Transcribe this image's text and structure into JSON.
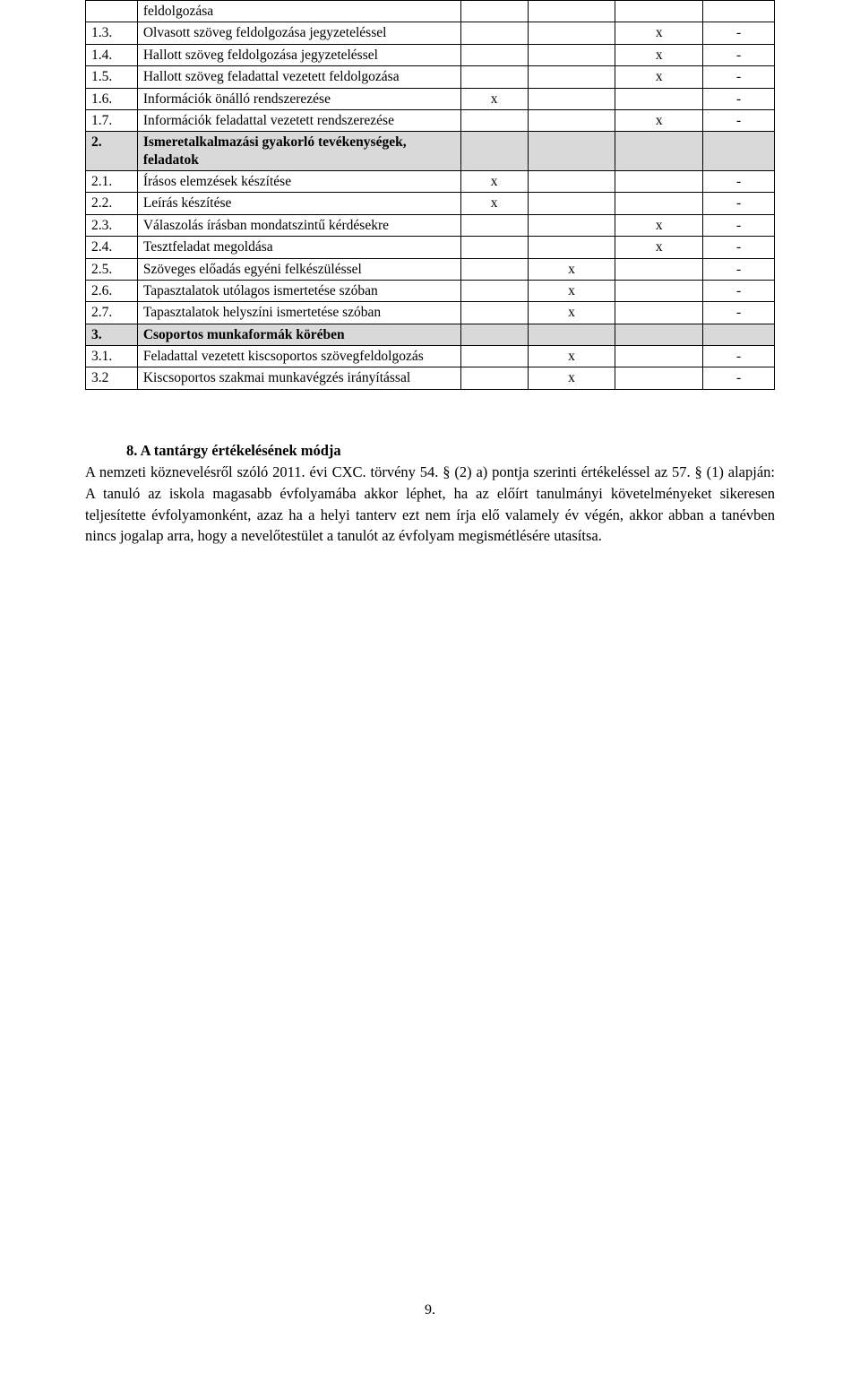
{
  "table": {
    "rows": [
      {
        "num": "",
        "desc": "feldolgozása",
        "c1": "",
        "c2": "",
        "c3": "",
        "c4": "",
        "header": false
      },
      {
        "num": "1.3.",
        "desc": "Olvasott szöveg feldolgozása jegyzeteléssel",
        "c1": "",
        "c2": "",
        "c3": "x",
        "c4": "-",
        "header": false
      },
      {
        "num": "1.4.",
        "desc": "Hallott szöveg feldolgozása jegyzeteléssel",
        "c1": "",
        "c2": "",
        "c3": "x",
        "c4": "-",
        "header": false
      },
      {
        "num": "1.5.",
        "desc": "Hallott szöveg feladattal vezetett feldolgozása",
        "c1": "",
        "c2": "",
        "c3": "x",
        "c4": "-",
        "header": false
      },
      {
        "num": "1.6.",
        "desc": "Információk önálló rendszerezése",
        "c1": "x",
        "c2": "",
        "c3": "",
        "c4": "-",
        "header": false
      },
      {
        "num": "1.7.",
        "desc": "Információk feladattal vezetett rendszerezése",
        "c1": "",
        "c2": "",
        "c3": "x",
        "c4": "-",
        "header": false
      },
      {
        "num": "2.",
        "desc": "Ismeretalkalmazási gyakorló tevékenységek, feladatok",
        "c1": "",
        "c2": "",
        "c3": "",
        "c4": "",
        "header": true
      },
      {
        "num": "2.1.",
        "desc": "Írásos elemzések készítése",
        "c1": "x",
        "c2": "",
        "c3": "",
        "c4": "-",
        "header": false
      },
      {
        "num": "2.2.",
        "desc": "Leírás készítése",
        "c1": "x",
        "c2": "",
        "c3": "",
        "c4": "-",
        "header": false
      },
      {
        "num": "2.3.",
        "desc": "Válaszolás írásban mondatszintű kérdésekre",
        "c1": "",
        "c2": "",
        "c3": "x",
        "c4": "-",
        "header": false
      },
      {
        "num": "2.4.",
        "desc": "Tesztfeladat megoldása",
        "c1": "",
        "c2": "",
        "c3": "x",
        "c4": "-",
        "header": false
      },
      {
        "num": "2.5.",
        "desc": "Szöveges előadás egyéni felkészüléssel",
        "c1": "",
        "c2": "x",
        "c3": "",
        "c4": "-",
        "header": false
      },
      {
        "num": "2.6.",
        "desc": "Tapasztalatok utólagos ismertetése szóban",
        "c1": "",
        "c2": "x",
        "c3": "",
        "c4": "-",
        "header": false
      },
      {
        "num": "2.7.",
        "desc": "Tapasztalatok helyszíni ismertetése szóban",
        "c1": "",
        "c2": "x",
        "c3": "",
        "c4": "-",
        "header": false
      },
      {
        "num": "3.",
        "desc": "Csoportos munkaformák körében",
        "c1": "",
        "c2": "",
        "c3": "",
        "c4": "",
        "header": true
      },
      {
        "num": "3.1.",
        "desc": "Feladattal vezetett kiscsoportos szövegfeldolgozás",
        "c1": "",
        "c2": "x",
        "c3": "",
        "c4": "-",
        "header": false
      },
      {
        "num": "3.2",
        "desc": "Kiscsoportos szakmai munkavégzés irányítással",
        "c1": "",
        "c2": "x",
        "c3": "",
        "c4": "-",
        "header": false
      }
    ]
  },
  "section8": {
    "heading": "8.   A tantárgy értékelésének módja",
    "paragraph": "A nemzeti köznevelésről szóló 2011. évi CXC. törvény 54. § (2) a) pontja szerinti értékeléssel az 57. § (1) alapján:\nA tanuló az iskola magasabb évfolyamába akkor léphet, ha az előírt tanulmányi követelményeket sikeresen teljesítette évfolyamonként, azaz ha a helyi tanterv ezt nem írja elő valamely év végén, akkor abban a tanévben nincs jogalap arra, hogy a nevelőtestület a tanulót az évfolyam megismétlésére utasítsa."
  },
  "page_number": "9."
}
